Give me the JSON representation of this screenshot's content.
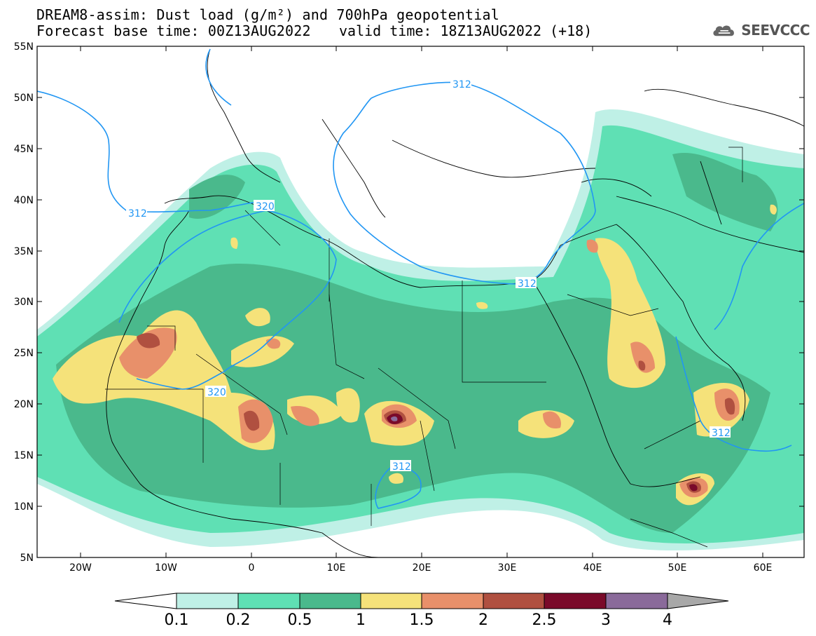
{
  "header": {
    "title_line1": "DREAM8-assim: Dust load (g/m²) and 700hPa geopotential",
    "title_line2_left": "Forecast base time: 00Z13AUG2022",
    "title_line2_right": "valid time: 18Z13AUG2022 (+18)"
  },
  "logo": {
    "text": "SEEVCCC",
    "icon": "cloud-icon"
  },
  "map": {
    "lat_ticks": [
      "55N",
      "50N",
      "45N",
      "40N",
      "35N",
      "30N",
      "25N",
      "20N",
      "15N",
      "10N",
      "5N"
    ],
    "lon_ticks": [
      "20W",
      "10W",
      "0",
      "10E",
      "20E",
      "30E",
      "40E",
      "50E",
      "60E"
    ],
    "contour_labels": [
      "312",
      "320",
      "312",
      "320",
      "312",
      "312",
      "312"
    ]
  },
  "colorbar": {
    "labels": [
      "0.1",
      "0.2",
      "0.5",
      "1",
      "1.5",
      "2",
      "2.5",
      "3",
      "4"
    ],
    "colors": [
      "#bff0e6",
      "#5fe0b4",
      "#4ab98c",
      "#f5e27a",
      "#e8906a",
      "#b05040",
      "#7a0a2a",
      "#8a6a9a",
      "#a8a8a8"
    ]
  }
}
